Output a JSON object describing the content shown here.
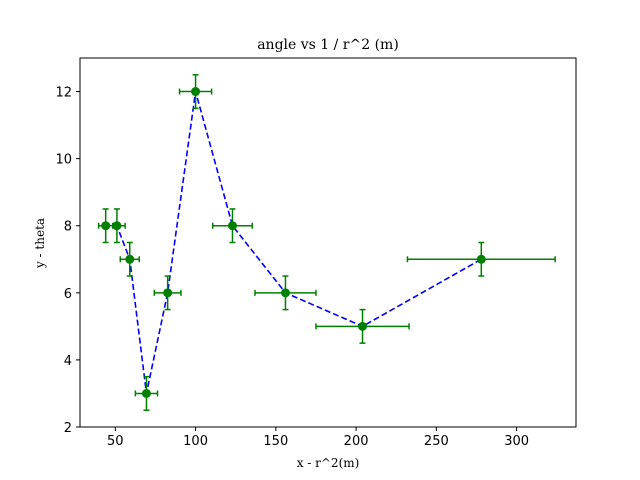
{
  "chart_data": {
    "type": "scatter",
    "title": "angle vs 1 / r^2 (m)",
    "xlabel": "x - r^2(m)",
    "ylabel": "y - theta",
    "xlim": [
      28,
      337
    ],
    "ylim": [
      2,
      13
    ],
    "xticks": [
      50,
      100,
      150,
      200,
      250,
      300
    ],
    "yticks": [
      2,
      4,
      6,
      8,
      10,
      12
    ],
    "grid": false,
    "legend": "none",
    "series": [
      {
        "x": [
          44,
          51,
          59,
          69.4,
          82.6,
          100,
          123,
          156,
          204,
          278
        ],
        "y": [
          8,
          8,
          7,
          3,
          6,
          12,
          8,
          6,
          5,
          7
        ],
        "xerr": [
          4.4,
          5.1,
          5.9,
          6.9,
          8.3,
          10,
          12.3,
          19,
          29,
          46
        ],
        "yerr": [
          0.5,
          0.5,
          0.5,
          0.5,
          0.5,
          0.5,
          0.5,
          0.5,
          0.5,
          0.5
        ],
        "marker_color": "#008000",
        "line_color": "#0000ff",
        "line_style": "dashed"
      }
    ]
  }
}
